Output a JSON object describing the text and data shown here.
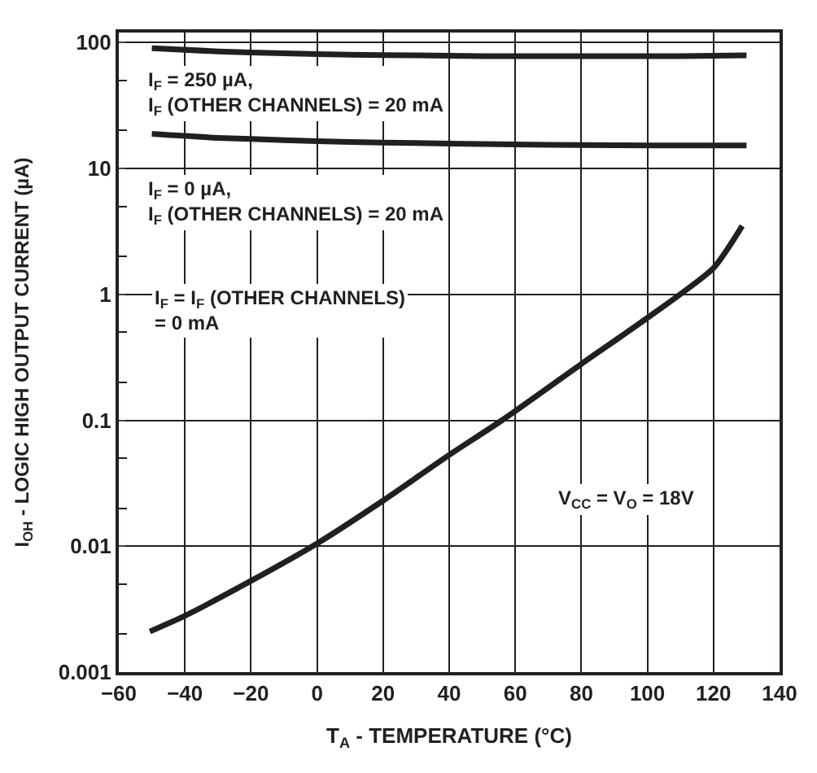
{
  "chart_data": {
    "type": "line",
    "xlabel": "T$_{A}$ - TEMPERATURE (°C)",
    "ylabel": "I$_{OH}$ - LOGIC HIGH OUTPUT CURRENT (µA)",
    "xlim": [
      -60,
      140
    ],
    "xticks": [
      -60,
      -40,
      -20,
      0,
      20,
      40,
      60,
      80,
      100,
      120,
      140
    ],
    "ylim": [
      0.001,
      120
    ],
    "yticks": [
      0.001,
      0.01,
      0.1,
      1,
      10,
      100
    ],
    "log": true,
    "grid": true,
    "marker": "none",
    "line_style": "solid",
    "series": [
      {
        "color": "#231f20",
        "x": [
          -50,
          -30,
          -10,
          10,
          30,
          50,
          70,
          90,
          110,
          130
        ],
        "values": [
          90,
          85,
          82,
          80,
          79,
          78,
          78,
          78,
          78,
          79
        ]
      },
      {
        "color": "#231f20",
        "x": [
          -50,
          -30,
          -10,
          10,
          30,
          50,
          70,
          90,
          110,
          130
        ],
        "values": [
          18.8,
          17.5,
          16.8,
          16.2,
          15.9,
          15.6,
          15.4,
          15.3,
          15.2,
          15.2
        ]
      },
      {
        "color": "#231f20",
        "x": [
          -50.6,
          -40,
          -20,
          0,
          20,
          40,
          56,
          80,
          100,
          120,
          128.7
        ],
        "values": [
          0.0021,
          0.0028,
          0.0053,
          0.0105,
          0.023,
          0.053,
          0.1,
          0.28,
          0.65,
          1.62,
          3.5
        ]
      }
    ],
    "annotations": [
      "I$_{F}$ = 250 µA,\nI$_{F}$ (OTHER CHANNELS) = 20 mA",
      "I$_{F}$ = 0 µA,\nI$_{F}$ (OTHER CHANNELS) = 20 mA",
      "I$_{F}$ = I$_{F}$ (OTHER CHANNELS)\n= 0 mA",
      "V$_{CC}$ = V$_{O}$ = 18V"
    ]
  }
}
